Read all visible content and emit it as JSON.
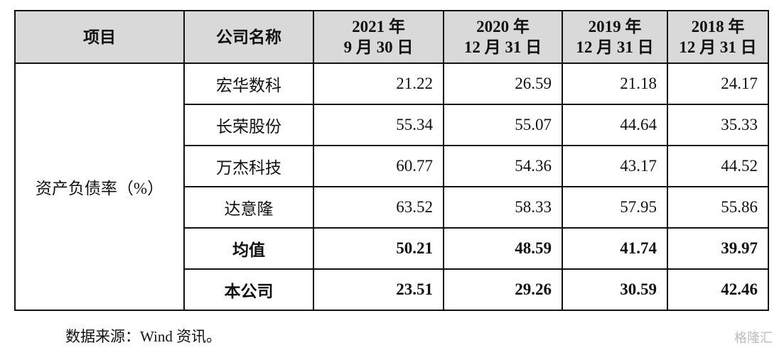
{
  "table": {
    "header": [
      [
        "项目"
      ],
      [
        "公司名称"
      ],
      [
        "2021 年",
        "9 月 30 日"
      ],
      [
        "2020 年",
        "12 月 31 日"
      ],
      [
        "2019 年",
        "12 月 31 日"
      ],
      [
        "2018 年",
        "12 月 31 日"
      ]
    ],
    "item": "资产负债率（%）",
    "rows": [
      [
        "宏华数科",
        "21.22",
        "26.59",
        "21.18",
        "24.17"
      ],
      [
        "长荣股份",
        "55.34",
        "55.07",
        "44.64",
        "35.33"
      ],
      [
        "万杰科技",
        "60.77",
        "54.36",
        "43.17",
        "44.52"
      ],
      [
        "达意隆",
        "63.52",
        "58.33",
        "57.95",
        "55.86"
      ],
      [
        "均值",
        "50.21",
        "48.59",
        "41.74",
        "39.97"
      ],
      [
        "本公司",
        "23.51",
        "29.26",
        "30.59",
        "42.46"
      ]
    ],
    "bold_rows": [
      4,
      5
    ]
  },
  "footer": {
    "source": "数据来源：Wind 资讯。"
  },
  "watermark": "格隆汇"
}
